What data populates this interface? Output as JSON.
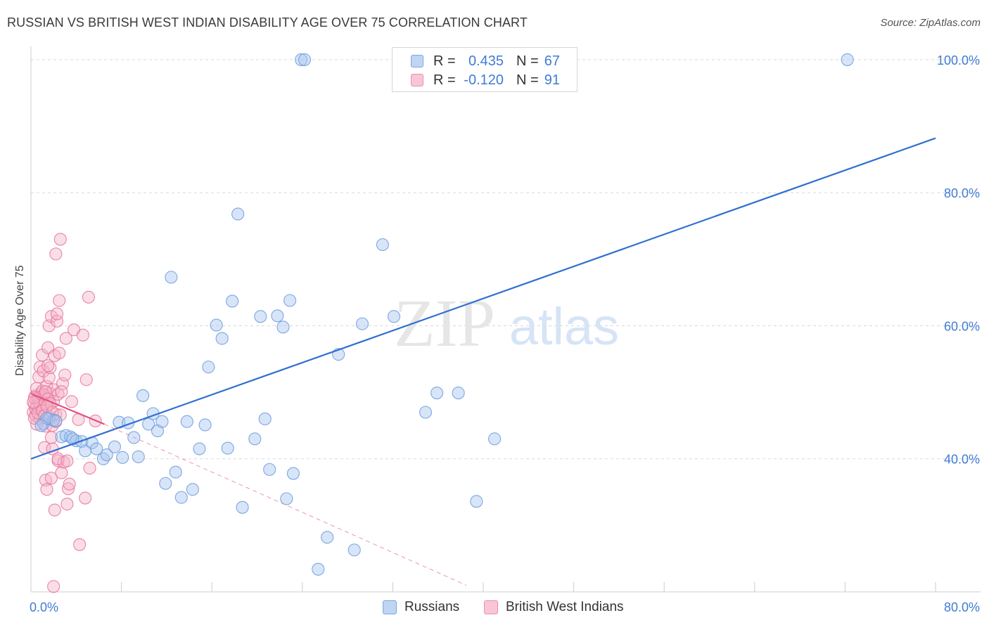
{
  "title": "RUSSIAN VS BRITISH WEST INDIAN DISABILITY AGE OVER 75 CORRELATION CHART",
  "source": "Source: ZipAtlas.com",
  "watermark": {
    "zip": "ZIP",
    "atlas": "atlas"
  },
  "colors": {
    "russians": "#6f9fe0",
    "russians_fill": "#a8c6ef",
    "russians_line": "#2f6fd0",
    "bwi": "#e8789c",
    "bwi_fill": "#f4b6c9",
    "bwi_line": "#e0527e",
    "tick_text": "#3f7bd6",
    "grid": "#d9d9d9"
  },
  "legend": {
    "rows": [
      {
        "r_label": "R =",
        "r_value": "0.435",
        "n_label": "N =",
        "n_value": "67",
        "series": "russians"
      },
      {
        "r_label": "R =",
        "r_value": "-0.120",
        "n_label": "N =",
        "n_value": "91",
        "series": "bwi"
      }
    ]
  },
  "bottom_legend": {
    "russians": "Russians",
    "bwi": "British West Indians"
  },
  "chart_data": {
    "type": "scatter",
    "title": "RUSSIAN VS BRITISH WEST INDIAN DISABILITY AGE OVER 75 CORRELATION CHART",
    "xlabel": "",
    "ylabel": "Disability Age Over 75",
    "xlim": [
      0,
      80
    ],
    "ylim": [
      20,
      102
    ],
    "x_tick_labels": [
      {
        "value": 0,
        "label": "0.0%"
      },
      {
        "value": 80,
        "label": "80.0%"
      }
    ],
    "x_ticks": [
      0,
      8,
      16,
      24,
      32,
      40,
      48,
      56,
      64,
      72,
      80
    ],
    "y_ticks": [
      {
        "value": 40,
        "label": "40.0%"
      },
      {
        "value": 60,
        "label": "60.0%"
      },
      {
        "value": 80,
        "label": "80.0%"
      },
      {
        "value": 100,
        "label": "100.0%"
      }
    ],
    "series": [
      {
        "name": "Russians",
        "key": "russians",
        "points": [
          [
            1.1,
            45.3
          ],
          [
            1.6,
            46.0
          ],
          [
            2.0,
            45.8
          ],
          [
            2.7,
            43.3
          ],
          [
            3.1,
            43.5
          ],
          [
            3.5,
            43.3
          ],
          [
            4.0,
            42.7
          ],
          [
            4.5,
            42.6
          ],
          [
            4.8,
            41.2
          ],
          [
            5.4,
            42.4
          ],
          [
            5.8,
            41.5
          ],
          [
            6.4,
            40.0
          ],
          [
            6.7,
            40.6
          ],
          [
            7.4,
            41.8
          ],
          [
            7.8,
            45.5
          ],
          [
            8.1,
            40.2
          ],
          [
            8.6,
            45.4
          ],
          [
            9.1,
            43.2
          ],
          [
            9.5,
            40.3
          ],
          [
            9.9,
            49.5
          ],
          [
            10.4,
            45.2
          ],
          [
            10.8,
            46.8
          ],
          [
            11.2,
            44.2
          ],
          [
            11.6,
            45.6
          ],
          [
            11.9,
            36.3
          ],
          [
            12.4,
            67.3
          ],
          [
            12.8,
            38.0
          ],
          [
            13.3,
            34.2
          ],
          [
            13.8,
            45.6
          ],
          [
            14.3,
            35.4
          ],
          [
            14.9,
            41.5
          ],
          [
            15.4,
            45.1
          ],
          [
            15.7,
            53.8
          ],
          [
            16.4,
            60.1
          ],
          [
            16.9,
            58.1
          ],
          [
            17.4,
            41.6
          ],
          [
            17.8,
            63.7
          ],
          [
            18.3,
            76.8
          ],
          [
            18.7,
            32.7
          ],
          [
            19.8,
            43.0
          ],
          [
            20.3,
            61.4
          ],
          [
            20.7,
            46.0
          ],
          [
            21.1,
            38.4
          ],
          [
            21.8,
            61.5
          ],
          [
            22.3,
            59.8
          ],
          [
            22.6,
            34.0
          ],
          [
            22.9,
            63.8
          ],
          [
            23.2,
            37.8
          ],
          [
            23.9,
            100.0
          ],
          [
            24.2,
            100.0
          ],
          [
            25.4,
            23.4
          ],
          [
            26.2,
            28.2
          ],
          [
            27.2,
            55.7
          ],
          [
            28.6,
            26.3
          ],
          [
            29.3,
            60.3
          ],
          [
            31.1,
            72.2
          ],
          [
            32.1,
            61.4
          ],
          [
            34.9,
            47.0
          ],
          [
            35.9,
            49.9
          ],
          [
            37.8,
            49.9
          ],
          [
            39.4,
            33.6
          ],
          [
            41.0,
            43.0
          ],
          [
            72.2,
            100.0
          ],
          [
            1.4,
            46.1
          ],
          [
            2.2,
            45.7
          ],
          [
            0.9,
            45.0
          ],
          [
            3.7,
            43.0
          ]
        ],
        "trend": {
          "x": [
            0,
            80
          ],
          "y": [
            40.0,
            88.2
          ],
          "style": "solid"
        }
      },
      {
        "name": "British West Indians",
        "key": "bwi",
        "points": [
          [
            0.2,
            47.0
          ],
          [
            0.3,
            48.2
          ],
          [
            0.4,
            49.5
          ],
          [
            0.4,
            46.5
          ],
          [
            0.5,
            45.2
          ],
          [
            0.5,
            50.6
          ],
          [
            0.6,
            47.8
          ],
          [
            0.6,
            49.0
          ],
          [
            0.7,
            52.3
          ],
          [
            0.7,
            48.6
          ],
          [
            0.8,
            53.8
          ],
          [
            0.8,
            46.0
          ],
          [
            0.9,
            49.8
          ],
          [
            0.9,
            47.3
          ],
          [
            1.0,
            50.2
          ],
          [
            1.0,
            55.6
          ],
          [
            1.1,
            48.4
          ],
          [
            1.1,
            53.2
          ],
          [
            1.2,
            49.4
          ],
          [
            1.2,
            41.7
          ],
          [
            1.3,
            36.8
          ],
          [
            1.3,
            44.9
          ],
          [
            1.4,
            35.4
          ],
          [
            1.4,
            50.9
          ],
          [
            1.5,
            48.2
          ],
          [
            1.5,
            56.7
          ],
          [
            1.6,
            52.2
          ],
          [
            1.6,
            60.0
          ],
          [
            1.7,
            49.8
          ],
          [
            1.7,
            53.7
          ],
          [
            1.8,
            61.4
          ],
          [
            1.8,
            37.1
          ],
          [
            1.9,
            45.0
          ],
          [
            1.9,
            41.5
          ],
          [
            2.0,
            50.4
          ],
          [
            2.0,
            48.6
          ],
          [
            2.1,
            32.3
          ],
          [
            2.1,
            55.5
          ],
          [
            2.2,
            70.8
          ],
          [
            2.2,
            46.7
          ],
          [
            2.3,
            60.7
          ],
          [
            2.3,
            61.8
          ],
          [
            2.4,
            39.7
          ],
          [
            2.4,
            49.7
          ],
          [
            2.5,
            63.8
          ],
          [
            2.5,
            55.9
          ],
          [
            2.6,
            73.0
          ],
          [
            2.7,
            37.9
          ],
          [
            2.8,
            51.3
          ],
          [
            2.9,
            39.5
          ],
          [
            3.0,
            52.6
          ],
          [
            3.1,
            58.1
          ],
          [
            3.2,
            33.2
          ],
          [
            3.3,
            35.5
          ],
          [
            3.4,
            36.2
          ],
          [
            3.6,
            48.6
          ],
          [
            3.8,
            59.4
          ],
          [
            4.2,
            45.9
          ],
          [
            4.3,
            27.1
          ],
          [
            4.6,
            58.6
          ],
          [
            4.8,
            34.1
          ],
          [
            4.9,
            51.9
          ],
          [
            5.1,
            64.3
          ],
          [
            5.2,
            38.6
          ],
          [
            5.7,
            45.7
          ],
          [
            0.3,
            46.1
          ],
          [
            0.5,
            48.0
          ],
          [
            0.7,
            49.2
          ],
          [
            0.9,
            48.9
          ],
          [
            1.1,
            49.6
          ],
          [
            1.3,
            50.1
          ],
          [
            1.5,
            49.0
          ],
          [
            1.7,
            48.3
          ],
          [
            0.4,
            47.6
          ],
          [
            0.6,
            46.9
          ],
          [
            0.8,
            48.1
          ],
          [
            1.0,
            47.2
          ],
          [
            1.2,
            46.5
          ],
          [
            1.4,
            47.9
          ],
          [
            1.6,
            46.3
          ],
          [
            1.9,
            47.0
          ],
          [
            2.2,
            45.6
          ],
          [
            2.6,
            46.6
          ],
          [
            1.8,
            43.2
          ],
          [
            2.4,
            40.0
          ],
          [
            3.2,
            39.7
          ],
          [
            0.3,
            49.2
          ],
          [
            0.2,
            48.5
          ],
          [
            1.5,
            54.0
          ],
          [
            2.7,
            50.1
          ],
          [
            2.0,
            20.8
          ]
        ],
        "trend_solid": {
          "x": [
            0,
            6.5
          ],
          "y": [
            49.8,
            45.2
          ],
          "style": "solid"
        },
        "trend_dashed": {
          "x": [
            6.5,
            38.5
          ],
          "y": [
            45.2,
            21.0
          ],
          "style": "dashed"
        }
      }
    ]
  }
}
